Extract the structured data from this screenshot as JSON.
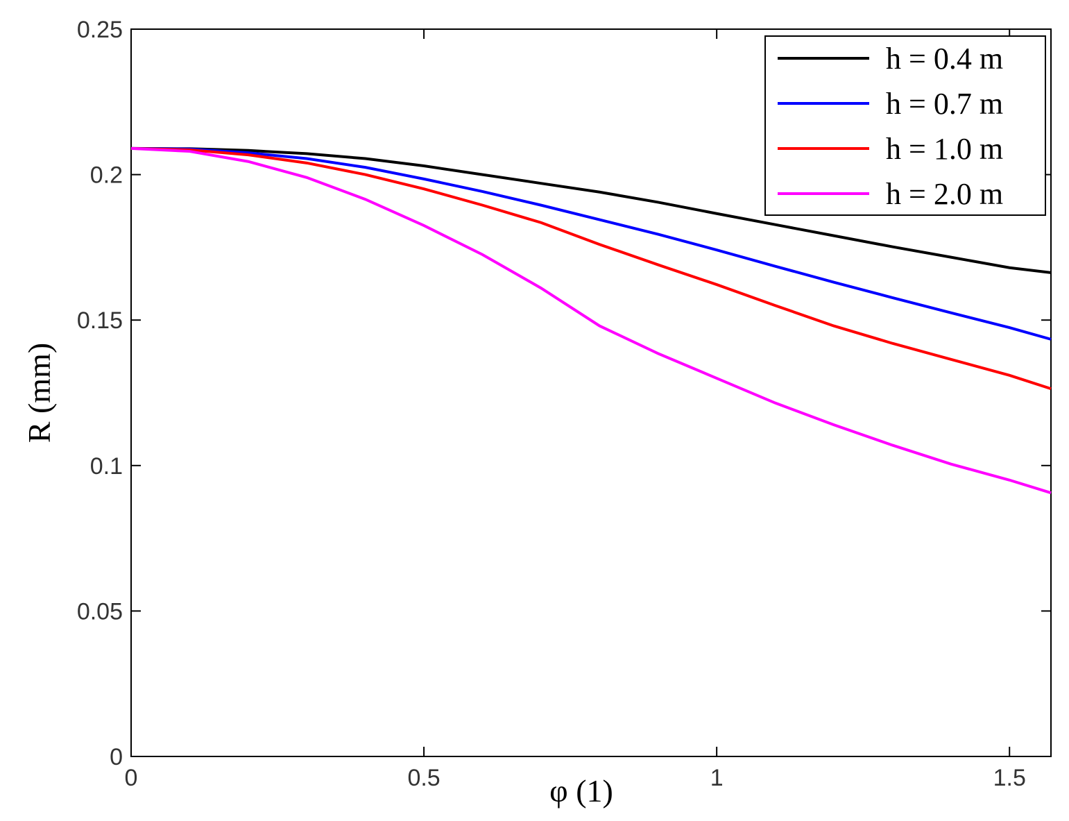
{
  "chart_data": {
    "type": "line",
    "xlabel": "φ (1)",
    "ylabel": "R (mm)",
    "x": [
      0,
      0.1,
      0.2,
      0.3,
      0.4,
      0.5,
      0.6,
      0.7,
      0.8,
      0.9,
      1.0,
      1.1,
      1.2,
      1.3,
      1.4,
      1.5,
      1.5708
    ],
    "series": [
      {
        "name": "h = 0.4 m",
        "color": "#000000",
        "values": [
          0.209,
          0.2089,
          0.2083,
          0.2072,
          0.2055,
          0.203,
          0.2,
          0.197,
          0.194,
          0.1905,
          0.1866,
          0.1828,
          0.179,
          0.1752,
          0.1716,
          0.168,
          0.1663
        ]
      },
      {
        "name": "h = 0.7 m",
        "color": "#0000ff",
        "values": [
          0.209,
          0.2088,
          0.2075,
          0.2055,
          0.2025,
          0.1985,
          0.1942,
          0.1895,
          0.1845,
          0.1795,
          0.1741,
          0.1685,
          0.163,
          0.1577,
          0.1525,
          0.1474,
          0.1434
        ]
      },
      {
        "name": "h = 1.0 m",
        "color": "#ff0000",
        "values": [
          0.209,
          0.2085,
          0.2068,
          0.204,
          0.2,
          0.1951,
          0.1895,
          0.1835,
          0.176,
          0.169,
          0.1622,
          0.155,
          0.148,
          0.142,
          0.1365,
          0.131,
          0.1264
        ]
      },
      {
        "name": "h = 2.0 m",
        "color": "#ff00ff",
        "values": [
          0.209,
          0.208,
          0.2045,
          0.199,
          0.1915,
          0.1825,
          0.1725,
          0.161,
          0.148,
          0.1385,
          0.13,
          0.1215,
          0.114,
          0.107,
          0.1005,
          0.095,
          0.0906
        ]
      }
    ],
    "xlim": [
      0,
      1.5708
    ],
    "ylim": [
      0,
      0.25
    ],
    "xticks": [
      0,
      0.5,
      1,
      1.5
    ],
    "yticks": [
      0,
      0.05,
      0.1,
      0.15,
      0.2,
      0.25
    ],
    "legend": "top-right"
  }
}
